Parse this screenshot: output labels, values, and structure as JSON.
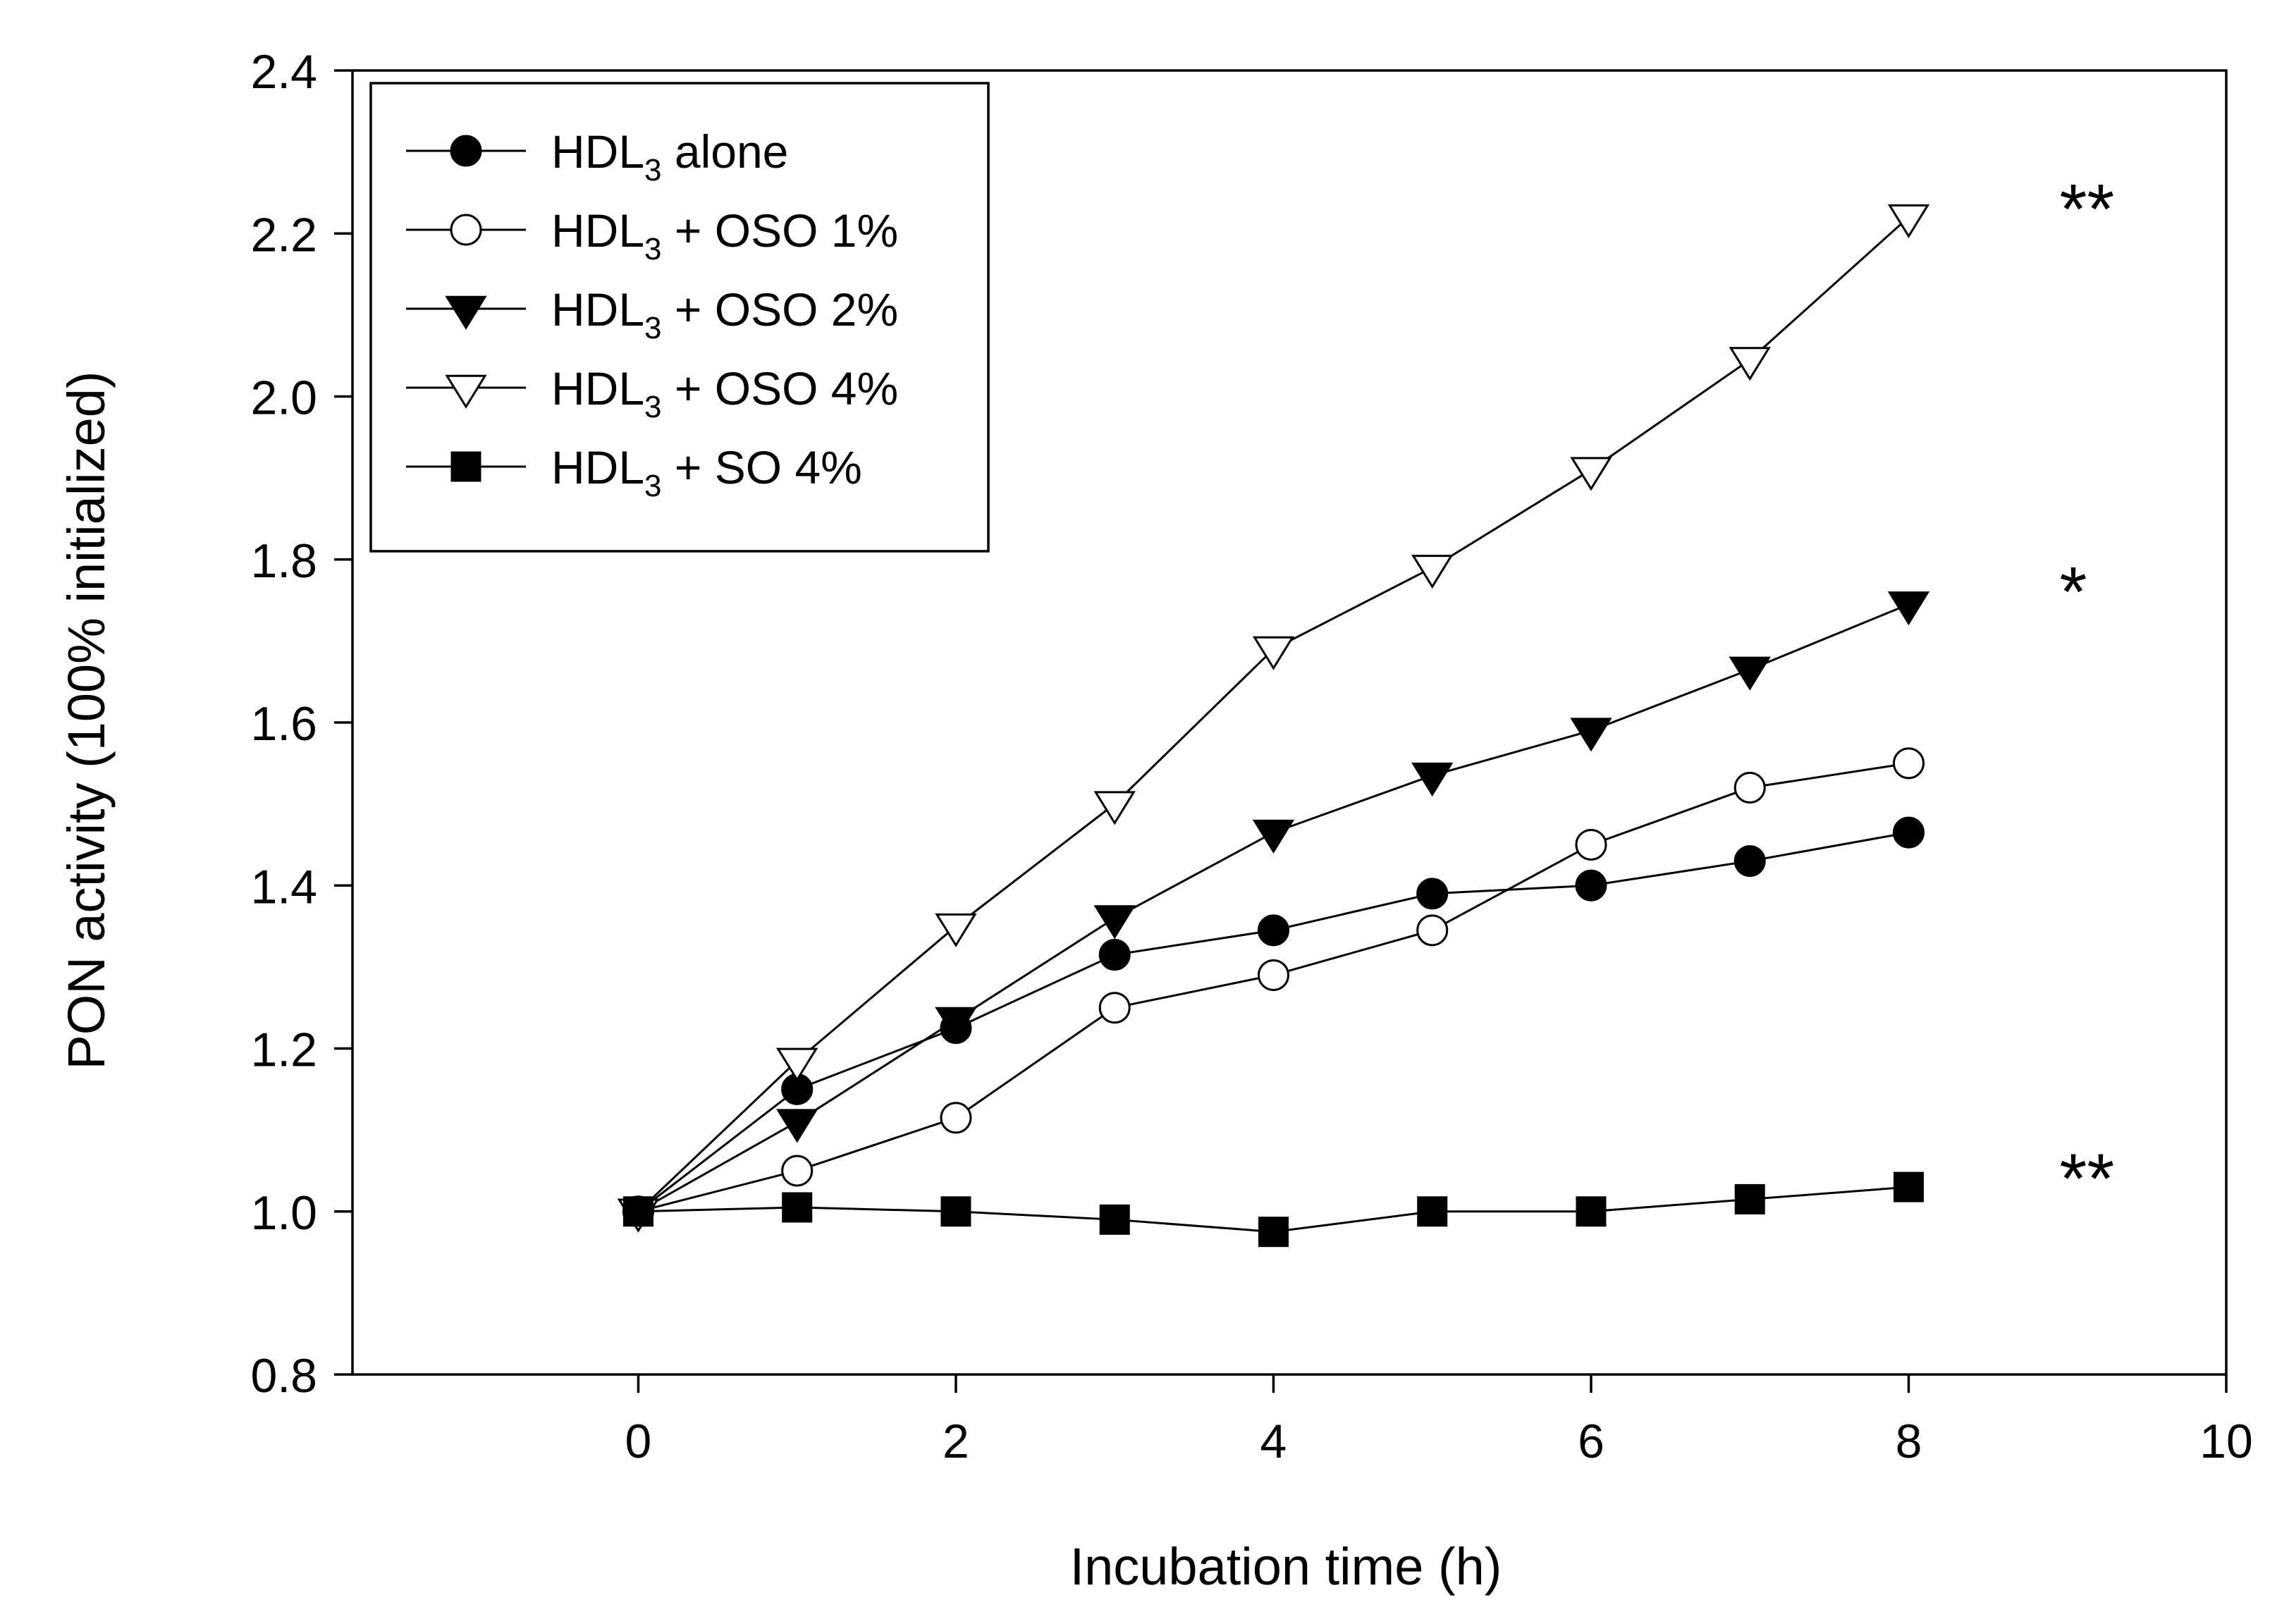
{
  "chart_data": {
    "type": "line",
    "title": "",
    "xlabel": "Incubation time (h)",
    "ylabel": "PON activity (100% initialized)",
    "xlim": [
      -1.8,
      10
    ],
    "ylim": [
      0.8,
      2.4
    ],
    "xticks": [
      0,
      2,
      4,
      6,
      8,
      10
    ],
    "xtick_labels": [
      "0",
      "2",
      "4",
      "6",
      "8",
      "10"
    ],
    "yticks": [
      0.8,
      1.0,
      1.2,
      1.4,
      1.6,
      1.8,
      2.0,
      2.2,
      2.4
    ],
    "ytick_labels": [
      "0.8",
      "1.0",
      "1.2",
      "1.4",
      "1.6",
      "1.8",
      "2.0",
      "2.2",
      "2.4"
    ],
    "grid": false,
    "legend_position": "top-left",
    "x": [
      0,
      1,
      2,
      3,
      4,
      5,
      6,
      7,
      8
    ],
    "series": [
      {
        "name": "HDL3 alone",
        "label_main": "HDL",
        "label_sub": "3",
        "label_rest": " alone",
        "marker": "circle-filled",
        "values": [
          1.0,
          1.15,
          1.225,
          1.315,
          1.345,
          1.39,
          1.4,
          1.43,
          1.465
        ]
      },
      {
        "name": "HDL3 + OSO 1%",
        "label_main": "HDL",
        "label_sub": "3",
        "label_rest": " + OSO 1%",
        "marker": "circle-open",
        "values": [
          1.0,
          1.05,
          1.115,
          1.25,
          1.29,
          1.345,
          1.45,
          1.52,
          1.55
        ]
      },
      {
        "name": "HDL3 + OSO 2%",
        "label_main": "HDL",
        "label_sub": "3",
        "label_rest": " + OSO 2%",
        "marker": "triangle-down-filled",
        "values": [
          1.0,
          1.11,
          1.235,
          1.36,
          1.465,
          1.535,
          1.59,
          1.665,
          1.745
        ]
      },
      {
        "name": "HDL3 + OSO 4%",
        "label_main": "HDL",
        "label_sub": "3",
        "label_rest": " + OSO 4%",
        "marker": "triangle-down-open",
        "values": [
          1.0,
          1.185,
          1.35,
          1.5,
          1.69,
          1.79,
          1.91,
          2.045,
          2.22
        ]
      },
      {
        "name": "HDL3 + SO 4%",
        "label_main": "HDL",
        "label_sub": "3",
        "label_rest": " + SO 4%",
        "marker": "square-filled",
        "values": [
          1.0,
          1.005,
          1.0,
          0.99,
          0.975,
          1.0,
          1.0,
          1.015,
          1.03
        ]
      }
    ],
    "annotations": [
      {
        "text": "**",
        "x": 8.95,
        "y": 2.235
      },
      {
        "text": "*",
        "x": 8.95,
        "y": 1.765
      },
      {
        "text": "**",
        "x": 8.95,
        "y": 1.045
      }
    ]
  }
}
